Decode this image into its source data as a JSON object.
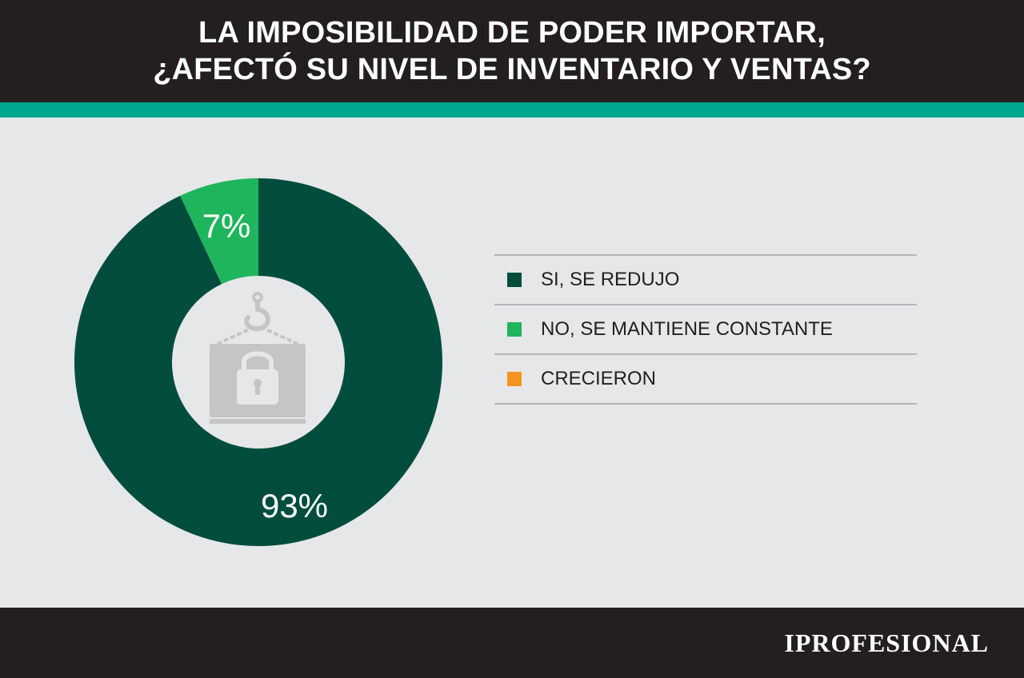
{
  "header": {
    "title_line1": "LA IMPOSIBILIDAD DE PODER IMPORTAR,",
    "title_line2": "¿AFECTÓ SU NIVEL DE INVENTARIO Y VENTAS?"
  },
  "footer": {
    "brand": "IPROFESIONAL"
  },
  "colors": {
    "header_bg": "#231f20",
    "accent_band": "#00a88f",
    "background": "#e6e7e8"
  },
  "center_icon": "locked-container-icon",
  "chart_data": {
    "type": "pie",
    "donut": true,
    "title": "LA IMPOSIBILIDAD DE PODER IMPORTAR, ¿AFECTÓ SU NIVEL DE INVENTARIO Y VENTAS?",
    "categories": [
      "SI, SE REDUJO",
      "NO, SE MANTIENE CONSTANTE",
      "CRECIERON"
    ],
    "values": [
      93,
      7,
      0
    ],
    "labels": [
      "93%",
      "7%",
      ""
    ],
    "colors": [
      "#004d3e",
      "#1fb55c",
      "#f7941d"
    ],
    "legend_position": "right"
  }
}
